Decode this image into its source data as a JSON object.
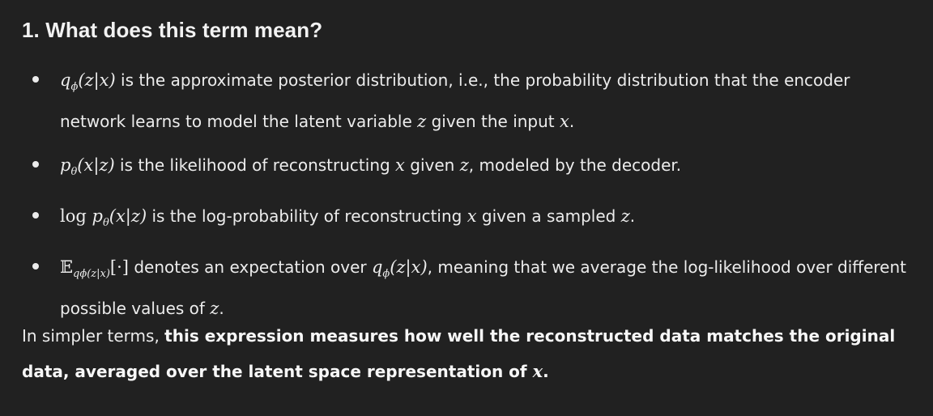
{
  "heading": "1. What does this term mean?",
  "items": [
    {
      "math": {
        "base": "q",
        "sub": "ϕ",
        "arg": "(z|x)"
      },
      "text1": " is the approximate posterior distribution, i.e., the probability distribution that the encoder network learns to model the latent variable ",
      "var1": "z",
      "text2": " given the input ",
      "var2": "x",
      "text3": "."
    },
    {
      "math": {
        "base": "p",
        "sub": "θ",
        "arg": "(x|z)"
      },
      "text1": " is the likelihood of reconstructing ",
      "var1": "x",
      "text2": " given ",
      "var2": "z",
      "text3": ", modeled by the decoder."
    },
    {
      "math": {
        "fn": "log ",
        "base": "p",
        "sub": "θ",
        "arg": "(x|z)"
      },
      "text1": " is the log-probability of reconstructing ",
      "var1": "x",
      "text2": " given a sampled ",
      "var2": "z",
      "text3": "."
    },
    {
      "math": {
        "op": "𝔼",
        "opsub": "qϕ(z|x)",
        "arg": "[·]"
      },
      "text1": " denotes an expectation over ",
      "inline_math": {
        "base": "q",
        "sub": "ϕ",
        "arg": "(z|x)"
      },
      "text2": ", meaning that we average the log-likelihood over different possible values of ",
      "var1": "z",
      "text3": "."
    }
  ],
  "summary": {
    "prefix": "In simpler terms, ",
    "bold": "this expression measures how well the reconstructed data matches the original data, averaged over the latent space representation of ",
    "var": "x",
    "suffix": "."
  }
}
